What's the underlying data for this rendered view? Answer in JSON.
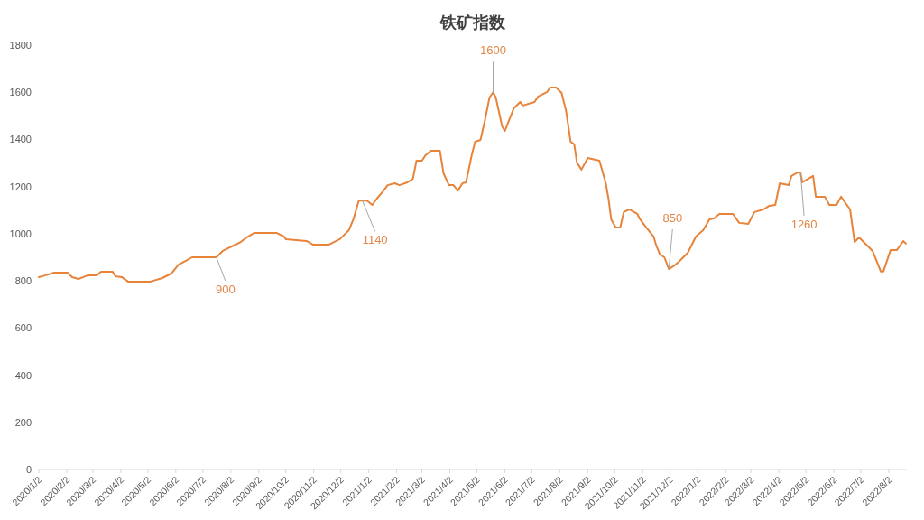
{
  "chart_data": {
    "type": "line",
    "title": "铁矿指数",
    "x": [
      "2020-01-02",
      "2020-01-09",
      "2020-01-19",
      "2020-02-03",
      "2020-02-08",
      "2020-02-15",
      "2020-02-25",
      "2020-03-06",
      "2020-03-11",
      "2020-03-24",
      "2020-03-27",
      "2020-04-03",
      "2020-04-10",
      "2020-05-05",
      "2020-05-18",
      "2020-05-28",
      "2020-06-05",
      "2020-06-15",
      "2020-06-20",
      "2020-07-17",
      "2020-07-24",
      "2020-08-03",
      "2020-08-13",
      "2020-08-21",
      "2020-08-28",
      "2020-09-22",
      "2020-09-30",
      "2020-10-02",
      "2020-10-25",
      "2020-11-01",
      "2020-11-19",
      "2020-12-01",
      "2020-12-11",
      "2020-12-16",
      "2020-12-22",
      "2020-12-31",
      "2021-01-06",
      "2021-01-11",
      "2021-01-18",
      "2021-01-23",
      "2021-01-31",
      "2021-02-05",
      "2021-02-14",
      "2021-02-20",
      "2021-02-24",
      "2021-03-02",
      "2021-03-06",
      "2021-03-12",
      "2021-03-22",
      "2021-03-26",
      "2021-04-01",
      "2021-04-06",
      "2021-04-11",
      "2021-04-16",
      "2021-04-20",
      "2021-04-26",
      "2021-04-30",
      "2021-05-06",
      "2021-05-11",
      "2021-05-16",
      "2021-05-20",
      "2021-05-23",
      "2021-05-30",
      "2021-06-02",
      "2021-06-12",
      "2021-06-19",
      "2021-06-22",
      "2021-07-05",
      "2021-07-09",
      "2021-07-19",
      "2021-07-22",
      "2021-07-29",
      "2021-08-04",
      "2021-08-09",
      "2021-08-14",
      "2021-08-18",
      "2021-08-21",
      "2021-08-26",
      "2021-09-02",
      "2021-09-15",
      "2021-09-22",
      "2021-09-25",
      "2021-09-28",
      "2021-10-03",
      "2021-10-08",
      "2021-10-12",
      "2021-10-18",
      "2021-10-27",
      "2021-10-30",
      "2021-11-06",
      "2021-11-14",
      "2021-11-17",
      "2021-11-21",
      "2021-11-26",
      "2021-12-01",
      "2021-12-06",
      "2021-12-12",
      "2021-12-22",
      "2021-12-26",
      "2021-12-31",
      "2022-01-08",
      "2022-01-15",
      "2022-01-20",
      "2022-01-26",
      "2022-02-10",
      "2022-02-17",
      "2022-02-27",
      "2022-03-06",
      "2022-03-16",
      "2022-03-22",
      "2022-03-29",
      "2022-04-03",
      "2022-04-13",
      "2022-04-16",
      "2022-04-23",
      "2022-04-26",
      "2022-04-28",
      "2022-05-10",
      "2022-05-13",
      "2022-05-23",
      "2022-05-28",
      "2022-06-05",
      "2022-06-10",
      "2022-06-20",
      "2022-06-25",
      "2022-06-30",
      "2022-07-09",
      "2022-07-15",
      "2022-07-24",
      "2022-07-27",
      "2022-08-04",
      "2022-08-11",
      "2022-08-18",
      "2022-08-21"
    ],
    "series": [
      {
        "color": "#e8843a",
        "values": [
          816,
          823,
          835,
          835,
          816,
          808,
          823,
          823,
          839,
          839,
          820,
          816,
          797,
          797,
          812,
          831,
          869,
          889,
          900,
          900,
          927,
          946,
          965,
          988,
          1003,
          1003,
          988,
          977,
          969,
          954,
          954,
          977,
          1015,
          1061,
          1140,
          1140,
          1122,
          1149,
          1180,
          1206,
          1214,
          1206,
          1218,
          1233,
          1310,
          1310,
          1333,
          1352,
          1352,
          1256,
          1206,
          1206,
          1183,
          1214,
          1218,
          1329,
          1390,
          1398,
          1482,
          1578,
          1600,
          1578,
          1455,
          1436,
          1532,
          1559,
          1544,
          1559,
          1582,
          1601,
          1620,
          1620,
          1597,
          1520,
          1390,
          1379,
          1302,
          1272,
          1321,
          1310,
          1214,
          1149,
          1061,
          1026,
          1026,
          1092,
          1103,
          1084,
          1061,
          1026,
          988,
          950,
          912,
          900,
          850,
          862,
          881,
          919,
          950,
          988,
          1015,
          1061,
          1065,
          1084,
          1084,
          1046,
          1042,
          1092,
          1103,
          1118,
          1122,
          1214,
          1206,
          1245,
          1260,
          1260,
          1218,
          1245,
          1157,
          1157,
          1122,
          1122,
          1157,
          1103,
          965,
          984,
          950,
          927,
          840,
          840,
          931,
          931,
          969,
          958
        ]
      }
    ],
    "xlim": [
      "2020-01-02",
      "2022-08-22"
    ],
    "xticks": [
      {
        "value": "2020-01-02",
        "label": "2020/1/2"
      },
      {
        "value": "2020-02-02",
        "label": "2020/2/2"
      },
      {
        "value": "2020-03-02",
        "label": "2020/3/2"
      },
      {
        "value": "2020-04-02",
        "label": "2020/4/2"
      },
      {
        "value": "2020-05-02",
        "label": "2020/5/2"
      },
      {
        "value": "2020-06-02",
        "label": "2020/6/2"
      },
      {
        "value": "2020-07-02",
        "label": "2020/7/2"
      },
      {
        "value": "2020-08-02",
        "label": "2020/8/2"
      },
      {
        "value": "2020-09-02",
        "label": "2020/9/2"
      },
      {
        "value": "2020-10-02",
        "label": "2020/10/2"
      },
      {
        "value": "2020-11-02",
        "label": "2020/11/2"
      },
      {
        "value": "2020-12-02",
        "label": "2020/12/2"
      },
      {
        "value": "2021-01-02",
        "label": "2021/1/2"
      },
      {
        "value": "2021-02-02",
        "label": "2021/2/2"
      },
      {
        "value": "2021-03-02",
        "label": "2021/3/2"
      },
      {
        "value": "2021-04-02",
        "label": "2021/4/2"
      },
      {
        "value": "2021-05-02",
        "label": "2021/5/2"
      },
      {
        "value": "2021-06-02",
        "label": "2021/6/2"
      },
      {
        "value": "2021-07-02",
        "label": "2021/7/2"
      },
      {
        "value": "2021-08-02",
        "label": "2021/8/2"
      },
      {
        "value": "2021-09-02",
        "label": "2021/9/2"
      },
      {
        "value": "2021-10-02",
        "label": "2021/10/2"
      },
      {
        "value": "2021-11-02",
        "label": "2021/11/2"
      },
      {
        "value": "2021-12-02",
        "label": "2021/12/2"
      },
      {
        "value": "2022-01-02",
        "label": "2022/1/2"
      },
      {
        "value": "2022-02-02",
        "label": "2022/2/2"
      },
      {
        "value": "2022-03-02",
        "label": "2022/3/2"
      },
      {
        "value": "2022-04-02",
        "label": "2022/4/2"
      },
      {
        "value": "2022-05-02",
        "label": "2022/5/2"
      },
      {
        "value": "2022-06-02",
        "label": "2022/6/2"
      },
      {
        "value": "2022-07-02",
        "label": "2022/7/2"
      },
      {
        "value": "2022-08-02",
        "label": "2022/8/2"
      }
    ],
    "ylim": [
      0,
      1800
    ],
    "yticks": [
      0,
      200,
      400,
      600,
      800,
      1000,
      1200,
      1400,
      1600,
      1800
    ],
    "grid": false,
    "annotations": [
      {
        "text": "900",
        "x": "2020-07-17",
        "y": 900
      },
      {
        "text": "1140",
        "x": "2020-12-26",
        "y": 1140
      },
      {
        "text": "1600",
        "x": "2021-05-20",
        "y": 1600
      },
      {
        "text": "850",
        "x": "2021-12-01",
        "y": 850
      },
      {
        "text": "1260",
        "x": "2022-04-26",
        "y": 1260
      }
    ]
  }
}
